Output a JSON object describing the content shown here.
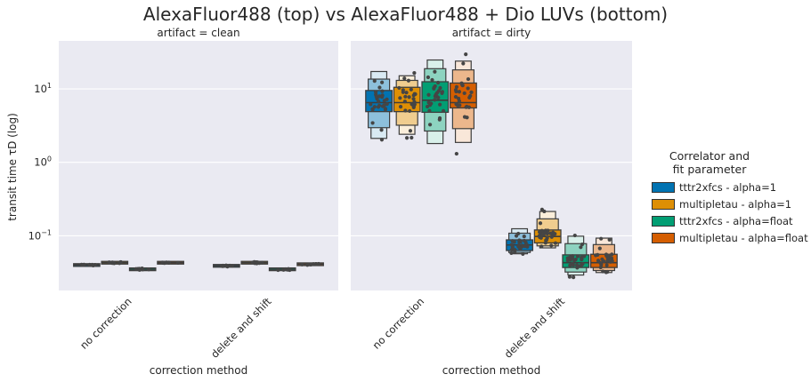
{
  "figure": {
    "title": "AlexaFluor488 (top) vs AlexaFluor488 + Dio LUVs (bottom)",
    "legend": {
      "title_line1": "Correlator and",
      "title_line2": "fit parameter",
      "entries": [
        {
          "label": "tttr2xfcs - alpha=1",
          "color": "#0173b2"
        },
        {
          "label": "multipletau - alpha=1",
          "color": "#de8f05"
        },
        {
          "label": "tttr2xfcs - alpha=float",
          "color": "#029e73"
        },
        {
          "label": "multipletau - alpha=float",
          "color": "#d55e00"
        }
      ]
    }
  },
  "chart_data": {
    "type": "boxen",
    "ylabel": "transit time τ_D (log)",
    "y_scale": "log",
    "ylim": [
      0.018,
      45
    ],
    "y_ticks": [
      0.1,
      1,
      10
    ],
    "y_tick_labels": [
      "10^-1",
      "10^0",
      "10^1"
    ],
    "grid": true,
    "legend_placement": "right",
    "panels": [
      {
        "title": "artifact = clean",
        "xlabel": "correction method",
        "categories": [
          "no correction",
          "delete and shift"
        ],
        "groups": [
          {
            "category": "no correction",
            "series": [
              {
                "name": "tttr2xfcs - alpha=1",
                "median": 0.04,
                "q1": 0.039,
                "q3": 0.041,
                "min": 0.038,
                "max": 0.042
              },
              {
                "name": "multipletau - alpha=1",
                "median": 0.043,
                "q1": 0.042,
                "q3": 0.044,
                "min": 0.041,
                "max": 0.045
              },
              {
                "name": "tttr2xfcs - alpha=float",
                "median": 0.035,
                "q1": 0.034,
                "q3": 0.036,
                "min": 0.033,
                "max": 0.037
              },
              {
                "name": "multipletau - alpha=float",
                "median": 0.043,
                "q1": 0.042,
                "q3": 0.044,
                "min": 0.041,
                "max": 0.045
              }
            ]
          },
          {
            "category": "delete and shift",
            "series": [
              {
                "name": "tttr2xfcs - alpha=1",
                "median": 0.039,
                "q1": 0.038,
                "q3": 0.04,
                "min": 0.037,
                "max": 0.041
              },
              {
                "name": "multipletau - alpha=1",
                "median": 0.043,
                "q1": 0.042,
                "q3": 0.044,
                "min": 0.041,
                "max": 0.045
              },
              {
                "name": "tttr2xfcs - alpha=float",
                "median": 0.035,
                "q1": 0.034,
                "q3": 0.036,
                "min": 0.033,
                "max": 0.037
              },
              {
                "name": "multipletau - alpha=float",
                "median": 0.041,
                "q1": 0.04,
                "q3": 0.042,
                "min": 0.039,
                "max": 0.043
              }
            ]
          }
        ]
      },
      {
        "title": "artifact = dirty",
        "xlabel": "correction method",
        "categories": [
          "no correction",
          "delete and shift"
        ],
        "groups": [
          {
            "category": "no correction",
            "series": [
              {
                "name": "tttr2xfcs - alpha=1",
                "median": 6.5,
                "q1": 4.9,
                "q3": 9.5,
                "min": 1.6,
                "max": 21
              },
              {
                "name": "multipletau - alpha=1",
                "median": 6.5,
                "q1": 4.9,
                "q3": 10.5,
                "min": 1.9,
                "max": 17
              },
              {
                "name": "tttr2xfcs - alpha=float",
                "median": 7.0,
                "q1": 4.8,
                "q3": 12.5,
                "min": 1.3,
                "max": 31
              },
              {
                "name": "multipletau - alpha=float",
                "median": 6.5,
                "q1": 5.5,
                "q3": 12.0,
                "min": 1.3,
                "max": 30
              }
            ]
          },
          {
            "category": "delete and shift",
            "series": [
              {
                "name": "tttr2xfcs - alpha=1",
                "median": 0.075,
                "q1": 0.063,
                "q3": 0.088,
                "min": 0.055,
                "max": 0.14
              },
              {
                "name": "multipletau - alpha=1",
                "median": 0.098,
                "q1": 0.08,
                "q3": 0.12,
                "min": 0.065,
                "max": 0.26
              },
              {
                "name": "tttr2xfcs - alpha=float",
                "median": 0.043,
                "q1": 0.037,
                "q3": 0.055,
                "min": 0.027,
                "max": 0.12
              },
              {
                "name": "multipletau - alpha=float",
                "median": 0.043,
                "q1": 0.037,
                "q3": 0.056,
                "min": 0.03,
                "max": 0.11
              }
            ]
          }
        ]
      }
    ]
  }
}
